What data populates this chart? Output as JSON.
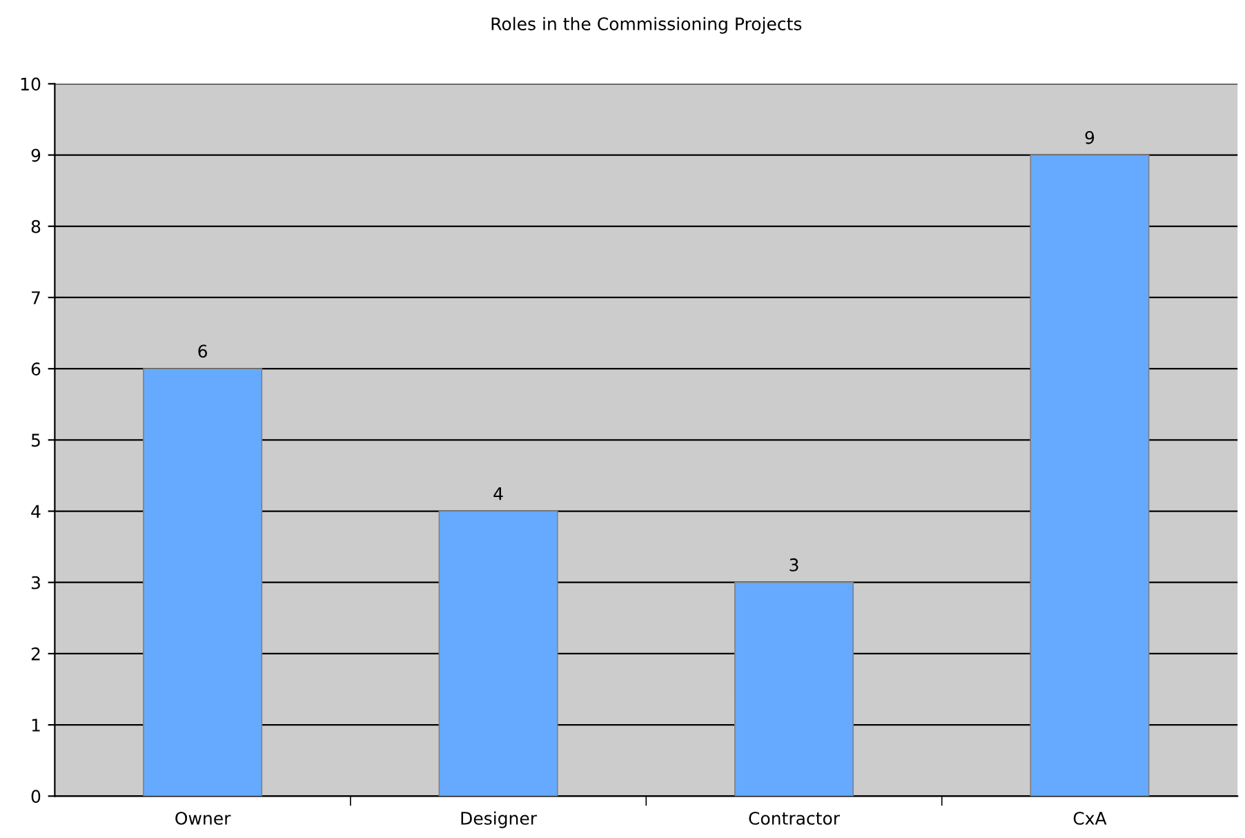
{
  "chart_data": {
    "type": "bar",
    "title": "Roles in the Commissioning Projects",
    "categories": [
      "Owner",
      "Designer",
      "Contractor",
      "CxA"
    ],
    "values": [
      6,
      4,
      3,
      9
    ],
    "color": "#66aaff",
    "ylim": [
      0,
      10
    ],
    "yticks": [
      0,
      1,
      2,
      3,
      4,
      5,
      6,
      7,
      8,
      9,
      10
    ],
    "grid": "y",
    "data_labels": true
  }
}
